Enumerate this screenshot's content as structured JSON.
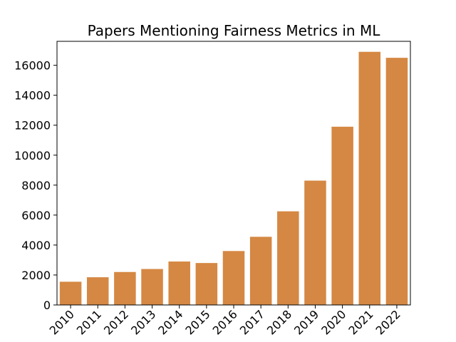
{
  "chart_data": {
    "type": "bar",
    "title": "Papers Mentioning Fairness Metrics in ML",
    "xlabel": "",
    "ylabel": "",
    "categories": [
      "2010",
      "2011",
      "2012",
      "2013",
      "2014",
      "2015",
      "2016",
      "2017",
      "2018",
      "2019",
      "2020",
      "2021",
      "2022"
    ],
    "values": [
      1550,
      1850,
      2200,
      2400,
      2900,
      2800,
      3600,
      4550,
      6250,
      8300,
      11900,
      16900,
      16500
    ],
    "ylim": [
      0,
      17600
    ],
    "yticks": [
      0,
      2000,
      4000,
      6000,
      8000,
      10000,
      12000,
      14000,
      16000
    ],
    "ytick_labels": [
      "0",
      "2000",
      "4000",
      "6000",
      "8000",
      "10000",
      "12000",
      "14000",
      "16000"
    ],
    "bar_color": "#d58843",
    "grid": false,
    "legend": "none"
  }
}
